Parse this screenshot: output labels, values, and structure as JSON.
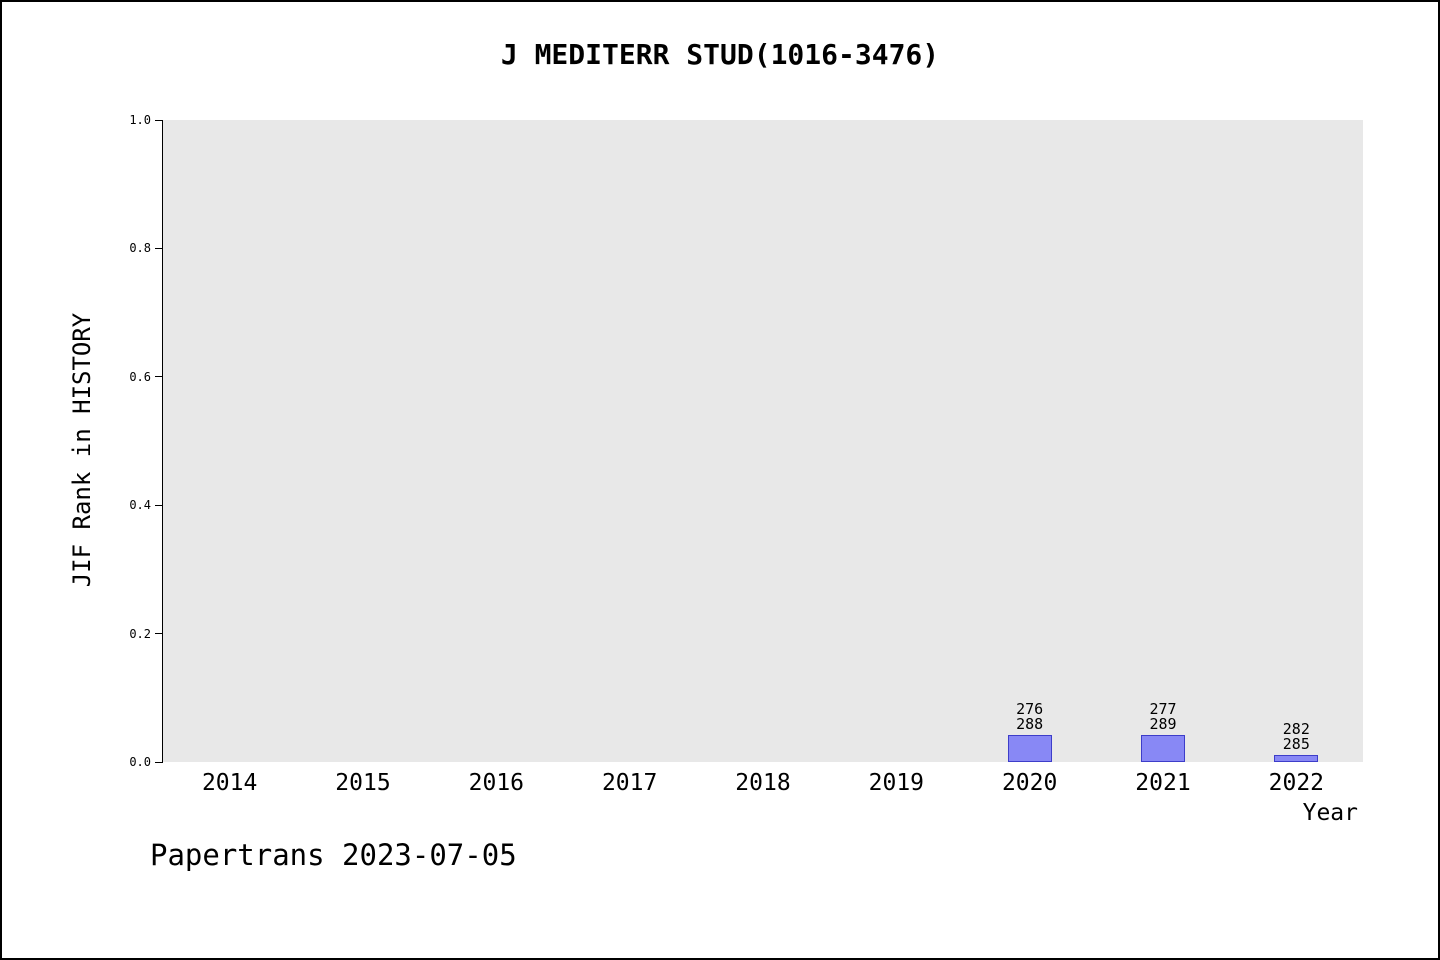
{
  "footer": "Papertrans 2023-07-05",
  "chart_data": {
    "type": "bar",
    "title": "J MEDITERR STUD(1016-3476)",
    "xlabel": "Year",
    "ylabel": "JIF Rank in HISTORY",
    "categories": [
      "2014",
      "2015",
      "2016",
      "2017",
      "2018",
      "2019",
      "2020",
      "2021",
      "2022"
    ],
    "values": [
      null,
      null,
      null,
      null,
      null,
      null,
      0.0417,
      0.0415,
      0.0105
    ],
    "ylim": [
      0.0,
      1.0
    ],
    "yticks": [
      "0.0",
      "0.2",
      "0.4",
      "0.6",
      "0.8",
      "1.0"
    ],
    "grid": false,
    "legend": "none",
    "plot_background": "#e8e8e8",
    "bar_fill": "#8888f5",
    "bar_edge": "#3d3dc9",
    "bars": [
      {
        "year": "2020",
        "rank": 276,
        "total": 288,
        "label_top": "276",
        "label_bottom": "288"
      },
      {
        "year": "2021",
        "rank": 277,
        "total": 289,
        "label_top": "277",
        "label_bottom": "289"
      },
      {
        "year": "2022",
        "rank": 282,
        "total": 285,
        "label_top": "282",
        "label_bottom": "285"
      }
    ]
  }
}
